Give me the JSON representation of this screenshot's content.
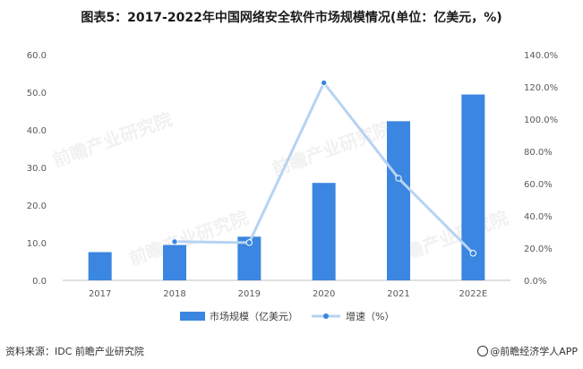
{
  "title": "图表5：2017-2022年中国网络安全软件市场规模情况(单位：亿美元，%)",
  "footer": {
    "source": "资料来源：IDC 前瞻产业研究院",
    "brand": "@前瞻经济学人APP"
  },
  "watermark_text": "前瞻产业研究院",
  "colors": {
    "bar": "#3a86e0",
    "line": "#b6d3f2",
    "marker": "#3a86e0",
    "axis": "#bfbfbf"
  },
  "chart_data": {
    "type": "bar",
    "categories": [
      "2017",
      "2018",
      "2019",
      "2020",
      "2021",
      "2022E"
    ],
    "series": [
      {
        "name": "市场规模（亿美元）",
        "type": "bar",
        "axis": "left",
        "values": [
          7.5,
          9.4,
          11.6,
          25.9,
          42.3,
          49.4
        ]
      },
      {
        "name": "增速（%）",
        "type": "line",
        "axis": "right",
        "values": [
          null,
          24.0,
          23.4,
          122.5,
          63.3,
          16.8
        ]
      }
    ],
    "yleft": {
      "lim": [
        0,
        60
      ],
      "ticks": [
        "0.0",
        "10.0",
        "20.0",
        "30.0",
        "40.0",
        "50.0",
        "60.0"
      ]
    },
    "yright": {
      "lim": [
        0,
        140
      ],
      "ticks": [
        "0.0%",
        "20.0%",
        "40.0%",
        "60.0%",
        "80.0%",
        "100.0%",
        "120.0%",
        "140.0%"
      ]
    },
    "legend": "bottom",
    "grid": false
  }
}
